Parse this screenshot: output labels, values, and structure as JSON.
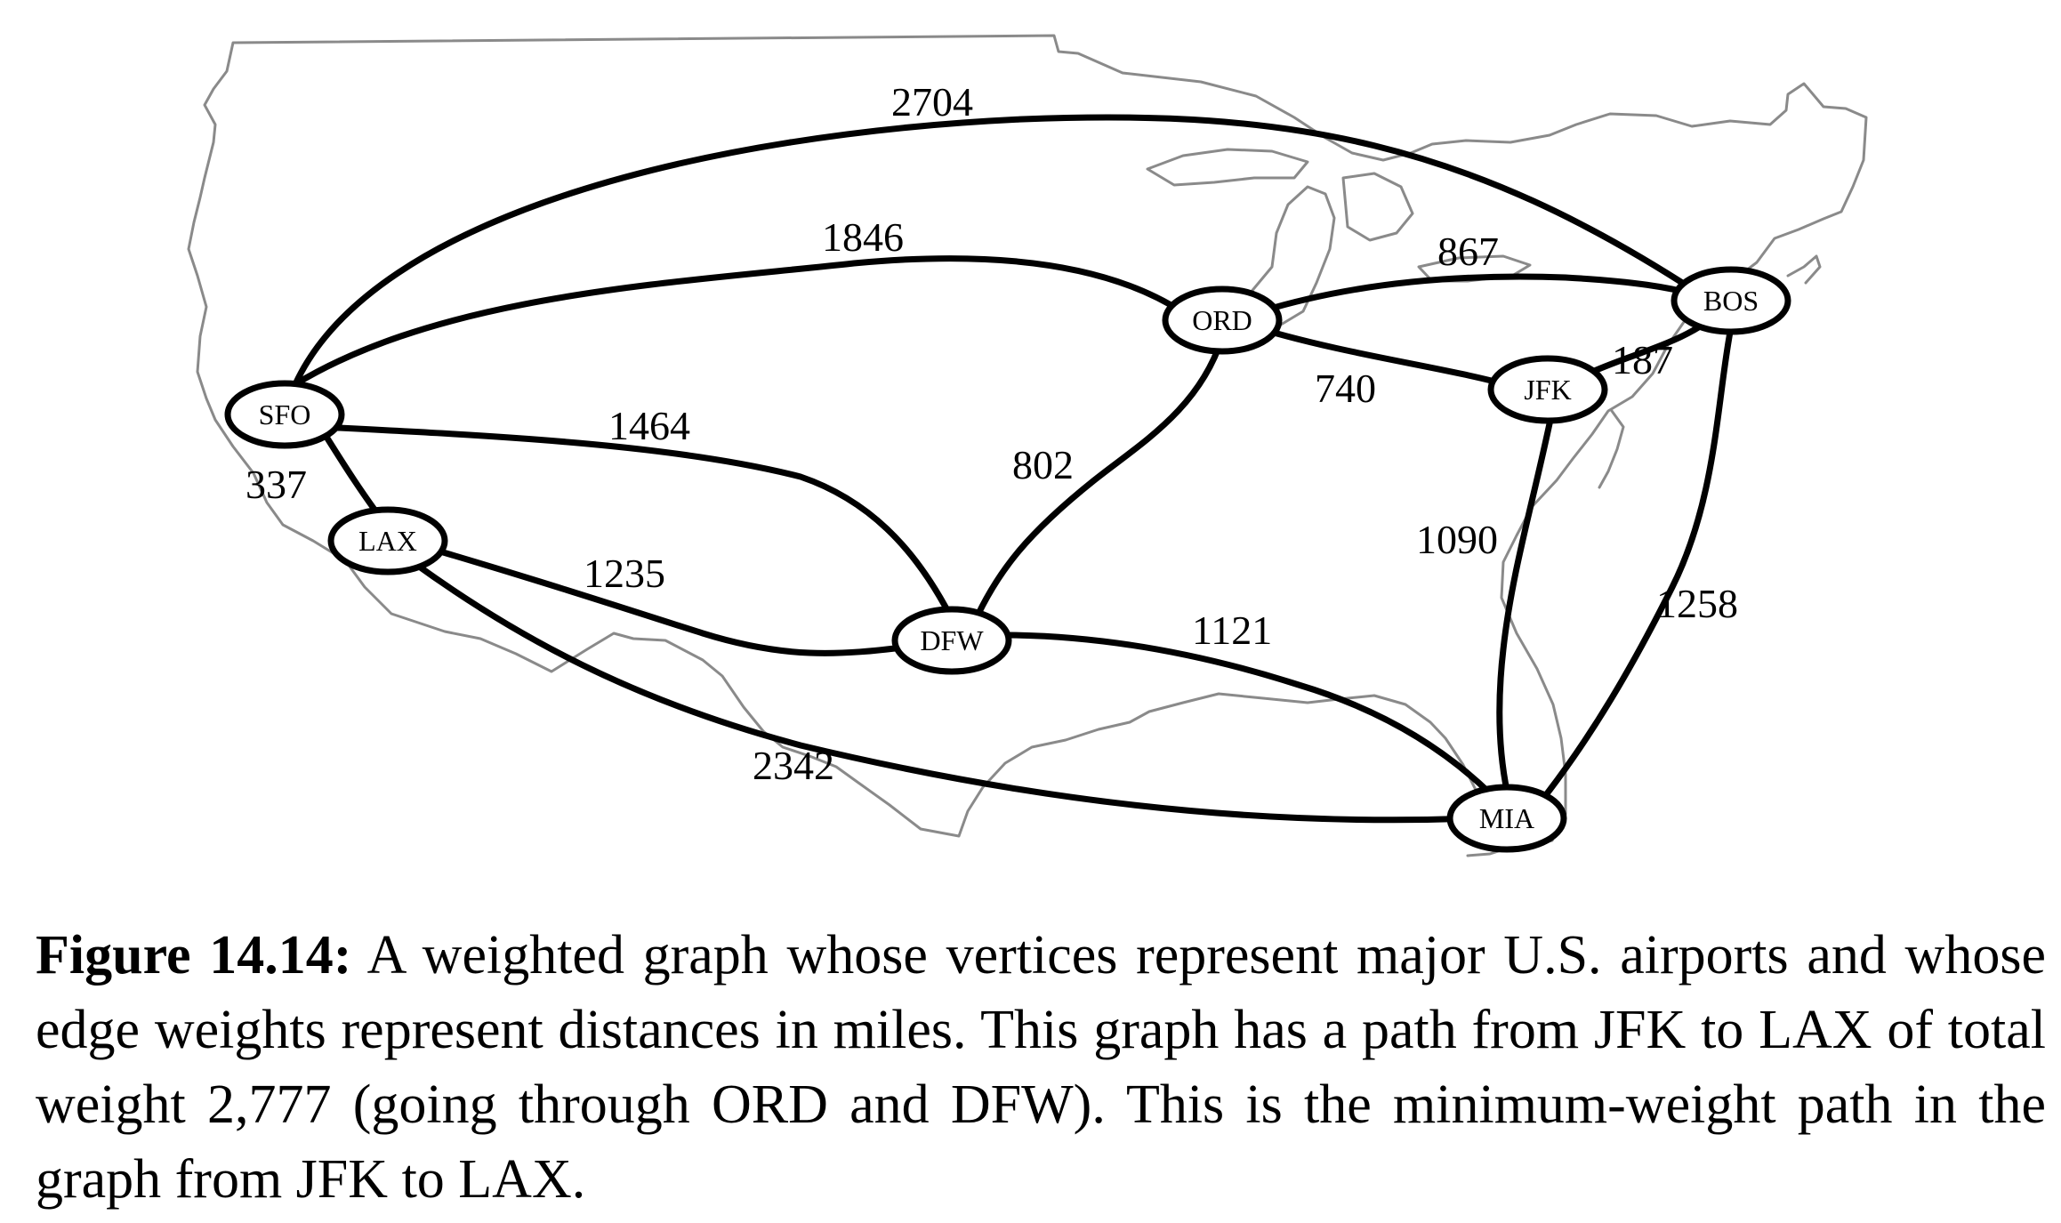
{
  "figure": {
    "caption_label": "Figure 14.14:",
    "caption_text": "A weighted graph whose vertices represent major U.S. airports and whose edge weights represent distances in miles. This graph has a path from JFK to LAX of total weight 2,777 (going through ORD and DFW). This is the minimum-weight path in the graph from JFK to LAX."
  },
  "graph": {
    "vertices": [
      {
        "id": "SFO",
        "label": "SFO"
      },
      {
        "id": "LAX",
        "label": "LAX"
      },
      {
        "id": "ORD",
        "label": "ORD"
      },
      {
        "id": "DFW",
        "label": "DFW"
      },
      {
        "id": "JFK",
        "label": "JFK"
      },
      {
        "id": "BOS",
        "label": "BOS"
      },
      {
        "id": "MIA",
        "label": "MIA"
      }
    ],
    "edges": [
      {
        "from": "SFO",
        "to": "BOS",
        "weight": "2704"
      },
      {
        "from": "SFO",
        "to": "ORD",
        "weight": "1846"
      },
      {
        "from": "ORD",
        "to": "BOS",
        "weight": "867"
      },
      {
        "from": "ORD",
        "to": "JFK",
        "weight": "740"
      },
      {
        "from": "JFK",
        "to": "BOS",
        "weight": "187"
      },
      {
        "from": "SFO",
        "to": "DFW",
        "weight": "1464"
      },
      {
        "from": "SFO",
        "to": "LAX",
        "weight": "337"
      },
      {
        "from": "ORD",
        "to": "DFW",
        "weight": "802"
      },
      {
        "from": "LAX",
        "to": "DFW",
        "weight": "1235"
      },
      {
        "from": "DFW",
        "to": "MIA",
        "weight": "1121"
      },
      {
        "from": "JFK",
        "to": "MIA",
        "weight": "1090"
      },
      {
        "from": "BOS",
        "to": "MIA",
        "weight": "1258"
      },
      {
        "from": "LAX",
        "to": "MIA",
        "weight": "2342"
      }
    ]
  },
  "colors": {
    "map_outline": "#8a8a8a",
    "edges": "#000000",
    "node_fill": "#ffffff"
  }
}
